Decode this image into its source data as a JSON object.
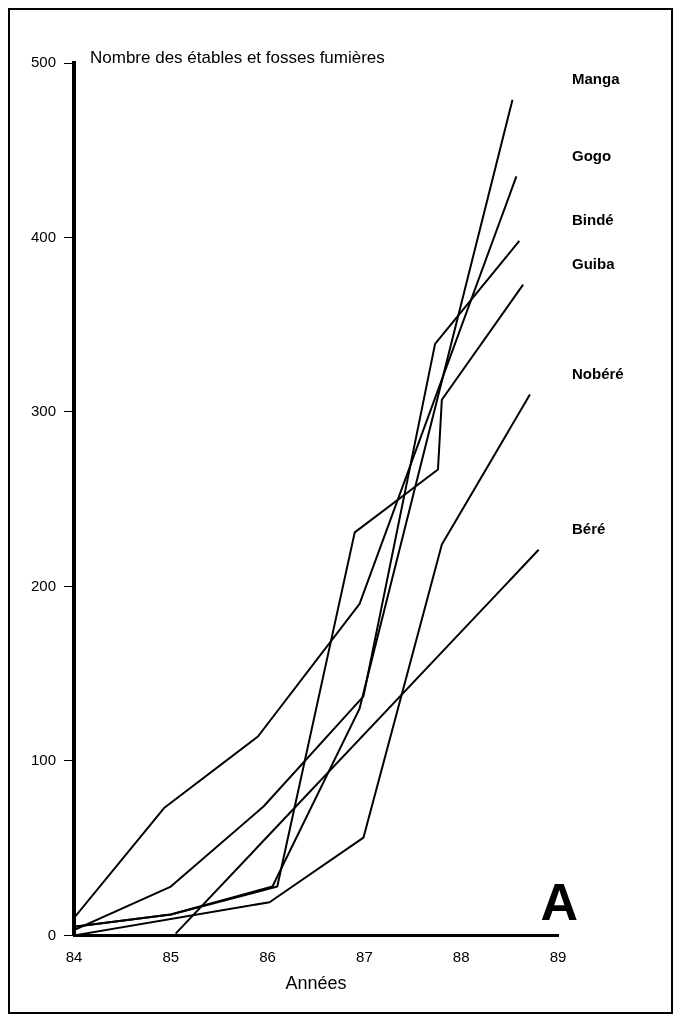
{
  "chart_data": {
    "type": "line",
    "ylabel": "Nombre des étables et fosses fumières",
    "xlabel": "Années",
    "xlim": [
      84,
      89
    ],
    "xticks": [
      84,
      85,
      86,
      87,
      88,
      89
    ],
    "ylim": [
      0,
      500
    ],
    "yticks": [
      0,
      100,
      200,
      300,
      400,
      500
    ],
    "grid": false,
    "legend": false,
    "marker": "none",
    "line_style": "solid",
    "annotations": [
      "A"
    ],
    "series": [
      {
        "name": "Manga",
        "color": "#000000",
        "x": [
          84,
          85,
          86.05,
          86.95,
          88.53
        ],
        "values": [
          5,
          12,
          28,
          130,
          479
        ]
      },
      {
        "name": "Gogo",
        "color": "#000000",
        "x": [
          84,
          84.93,
          85.9,
          86.95,
          88.57
        ],
        "values": [
          10,
          73,
          114,
          190,
          435
        ]
      },
      {
        "name": "Bindé",
        "color": "#000000",
        "x": [
          84,
          85,
          85.96,
          86.99,
          87.73,
          88.6
        ],
        "values": [
          3,
          28,
          74,
          137,
          339,
          398
        ]
      },
      {
        "name": "Guiba",
        "color": "#000000",
        "x": [
          84,
          85,
          86.1,
          86.9,
          87.76,
          87.8,
          88.64
        ],
        "values": [
          5,
          12,
          28,
          231,
          267,
          307,
          373
        ]
      },
      {
        "name": "Nobéré",
        "color": "#000000",
        "x": [
          84,
          86.02,
          86.99,
          87.8,
          88.71
        ],
        "values": [
          0,
          19,
          56,
          224,
          310
        ]
      },
      {
        "name": "Béré",
        "color": "#000000",
        "x": [
          85.05,
          88.8
        ],
        "values": [
          1,
          221
        ]
      }
    ]
  }
}
